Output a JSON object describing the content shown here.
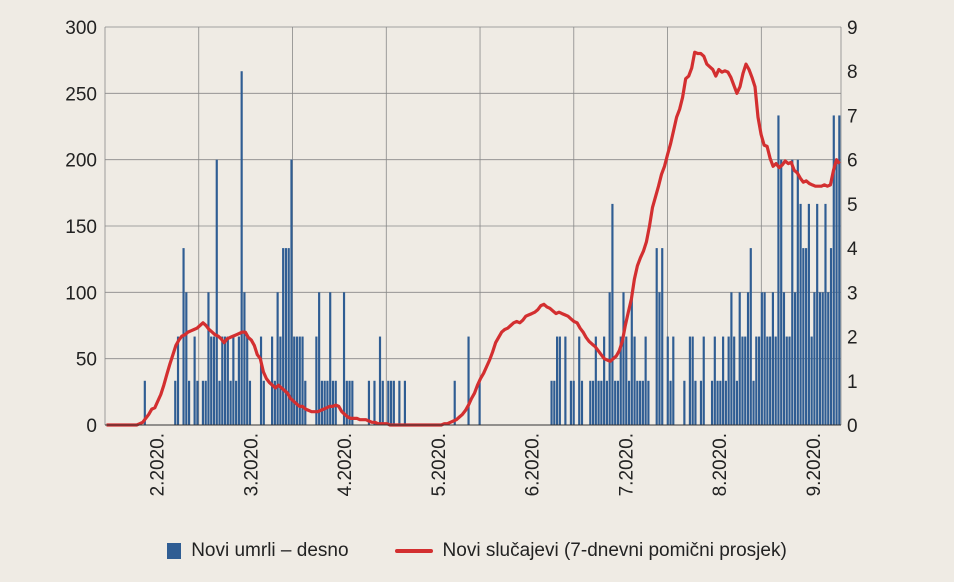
{
  "chart_data": {
    "type": "bar+line",
    "left_axis": {
      "ticks": [
        "0",
        "50",
        "100",
        "150",
        "200",
        "250",
        "300"
      ],
      "range": [
        0,
        300
      ]
    },
    "right_axis": {
      "ticks": [
        "0",
        "1",
        "2",
        "3",
        "4",
        "5",
        "6",
        "7",
        "8",
        "9"
      ],
      "range": [
        0,
        9
      ]
    },
    "x_labels": [
      "2.2020.",
      "3.2020.",
      "4.2020.",
      "5.2020.",
      "6.2020.",
      "7.2020.",
      "8.2020.",
      "9.2020."
    ],
    "series": [
      {
        "name": "Novi umrli – desno",
        "kind": "bar",
        "axis": "right",
        "color": "#2f5d93",
        "values": [
          0,
          0,
          0,
          0,
          0,
          0,
          0,
          0,
          0,
          0,
          0,
          0,
          0,
          0,
          1,
          0,
          0,
          0,
          0,
          0,
          0,
          0,
          0,
          0,
          0,
          1,
          2,
          0,
          4,
          3,
          1,
          0,
          2,
          1,
          0,
          1,
          1,
          3,
          2,
          2,
          6,
          1,
          2,
          2,
          2,
          1,
          2,
          1,
          2,
          8,
          3,
          2,
          1,
          0,
          0,
          0,
          2,
          1,
          0,
          0,
          2,
          1,
          3,
          2,
          4,
          4,
          4,
          6,
          2,
          2,
          2,
          2,
          1,
          0,
          0,
          0,
          2,
          3,
          1,
          1,
          1,
          3,
          1,
          1,
          0,
          0,
          3,
          1,
          1,
          1,
          0,
          0,
          0,
          0,
          0,
          1,
          0,
          1,
          0,
          2,
          1,
          0,
          1,
          1,
          1,
          0,
          1,
          0,
          1,
          0,
          0,
          0,
          0,
          0,
          0,
          0,
          0,
          0,
          0,
          0,
          0,
          0,
          0,
          0,
          0,
          0,
          1,
          0,
          0,
          0,
          0,
          2,
          0,
          0,
          0,
          1,
          0,
          0,
          0,
          0,
          0,
          0,
          0,
          0,
          0,
          0,
          0,
          0,
          0,
          0,
          0,
          0,
          0,
          0,
          0,
          0,
          0,
          0,
          0,
          0,
          0,
          1,
          1,
          2,
          2,
          0,
          2,
          0,
          1,
          1,
          0,
          2,
          1,
          0,
          0,
          1,
          1,
          2,
          1,
          1,
          2,
          1,
          3,
          5,
          1,
          1,
          2,
          3,
          2,
          1,
          3,
          2,
          1,
          1,
          1,
          2,
          1,
          0,
          0,
          4,
          3,
          4,
          0,
          2,
          1,
          2,
          0,
          0,
          0,
          1,
          0,
          2,
          2,
          1,
          0,
          1,
          2,
          0,
          0,
          1,
          2,
          1,
          1,
          2,
          1,
          2,
          3,
          2,
          1,
          3,
          2,
          2,
          3,
          4,
          1,
          2,
          2,
          3,
          3,
          2,
          2,
          3,
          2,
          7,
          6,
          3,
          2,
          2,
          6,
          3,
          6,
          5,
          4,
          4,
          5,
          2,
          3,
          5,
          3,
          3,
          5,
          3,
          4,
          7,
          6,
          7
        ]
      },
      {
        "name": "Novi slučajevi  (7-dnevni pomični prosjek)",
        "kind": "line",
        "axis": "left",
        "color": "#d32f30",
        "values": [
          0,
          0,
          0,
          0,
          0,
          0,
          0,
          0,
          0,
          0,
          0,
          1,
          2,
          5,
          8,
          12,
          13,
          18,
          23,
          30,
          38,
          46,
          53,
          60,
          64,
          67,
          68,
          70,
          71,
          72,
          73,
          75,
          77,
          75,
          72,
          70,
          68,
          67,
          65,
          62,
          65,
          66,
          67,
          68,
          69,
          70,
          70,
          66,
          64,
          60,
          53,
          50,
          40,
          35,
          32,
          30,
          28,
          30,
          28,
          26,
          24,
          20,
          18,
          16,
          14,
          14,
          12,
          11,
          10,
          10,
          10,
          11,
          12,
          13,
          14,
          14,
          15,
          14,
          10,
          8,
          6,
          5,
          5,
          5,
          4,
          4,
          4,
          3,
          2,
          2,
          1,
          1,
          1,
          1,
          0,
          0,
          0,
          0,
          0,
          0,
          0,
          0,
          0,
          0,
          0,
          0,
          0,
          0,
          0,
          0,
          0,
          0,
          1,
          1,
          2,
          3,
          4,
          6,
          8,
          11,
          15,
          20,
          24,
          30,
          35,
          39,
          44,
          49,
          55,
          62,
          66,
          70,
          72,
          73,
          75,
          77,
          78,
          77,
          79,
          82,
          83,
          84,
          85,
          87,
          90,
          91,
          89,
          88,
          86,
          84,
          85,
          84,
          83,
          82,
          80,
          78,
          77,
          73,
          70,
          66,
          63,
          61,
          59,
          56,
          53,
          50,
          49,
          48,
          50,
          52,
          56,
          63,
          75,
          85,
          95,
          110,
          120,
          126,
          131,
          138,
          150,
          164,
          172,
          180,
          189,
          195,
          204,
          212,
          222,
          232,
          238,
          247,
          261,
          263,
          269,
          281,
          280,
          280,
          278,
          272,
          270,
          268,
          263,
          268,
          266,
          267,
          266,
          262,
          256,
          250,
          255,
          265,
          272,
          268,
          262,
          255,
          232,
          219,
          211,
          210,
          201,
          195,
          197,
          194,
          196,
          199,
          197,
          198,
          192,
          190,
          186,
          183,
          184,
          182,
          181,
          180,
          180,
          180,
          181,
          180,
          181,
          192,
          200,
          197
        ]
      }
    ]
  }
}
